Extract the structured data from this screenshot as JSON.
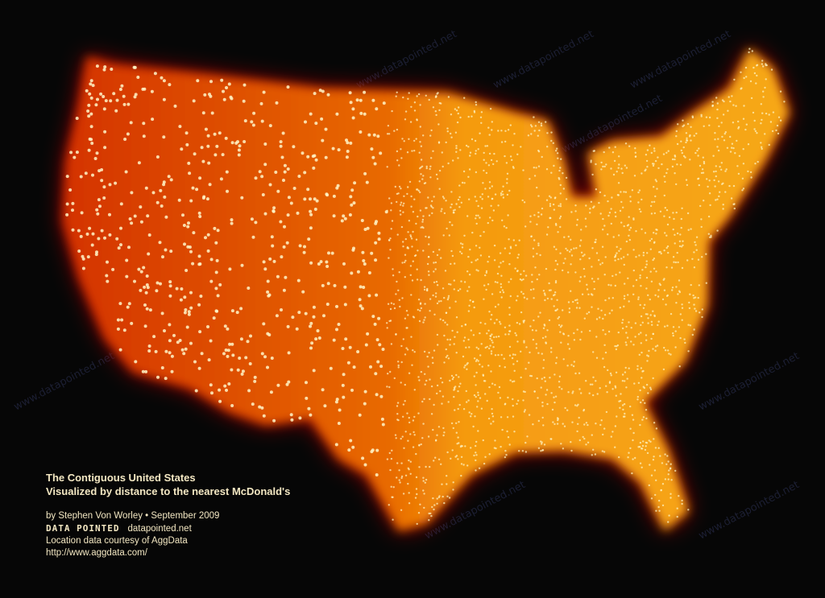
{
  "watermark": "www.datapointed.net",
  "caption": {
    "title": "The Contiguous United States",
    "subtitle": "Visualized by distance to the nearest McDonald's",
    "byline": "by Stephen Von Worley • September 2009",
    "brand": "DATA POINTED",
    "brand_url": "datapointed.net",
    "credit": "Location data courtesy of AggData",
    "credit_url": "http://www.aggdata.com/"
  },
  "colors": {
    "background": "#060606",
    "far": "#8b0000",
    "mid": "#e03a00",
    "near": "#ffb020",
    "dot": "#fff6c8"
  }
}
